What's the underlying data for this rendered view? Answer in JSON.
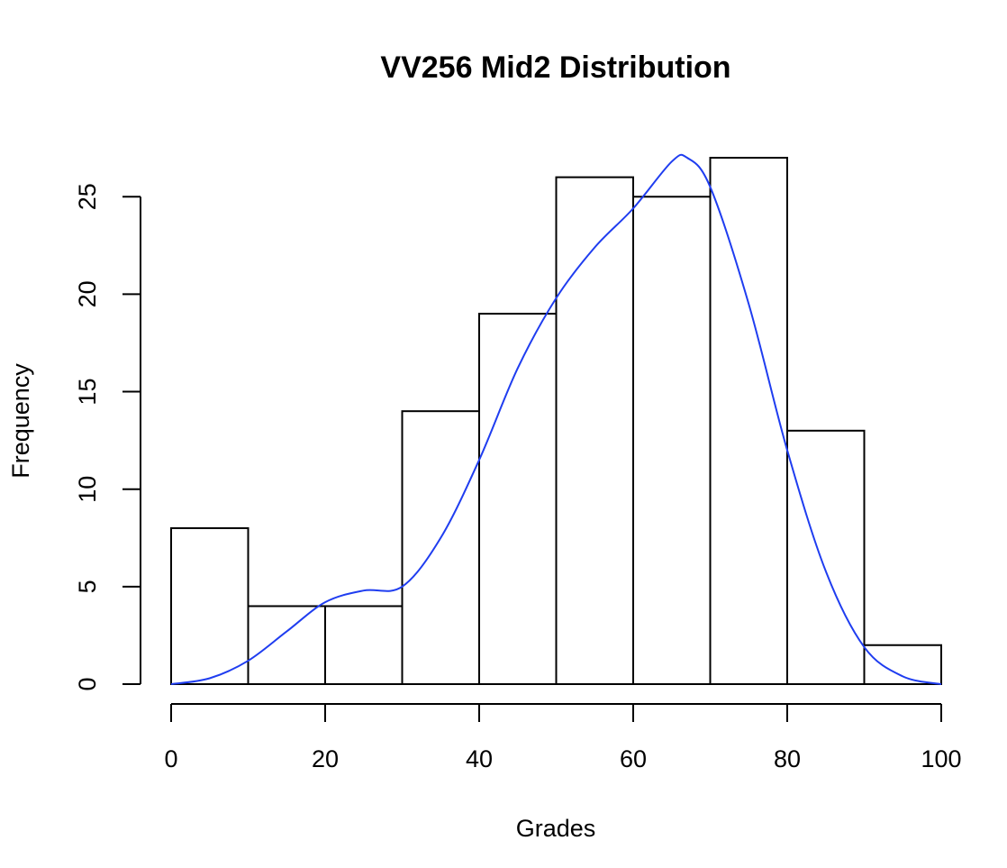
{
  "chart_data": {
    "type": "bar",
    "title": "VV256 Mid2 Distribution",
    "xlabel": "Grades",
    "ylabel": "Frequency",
    "bins": [
      {
        "start": 0,
        "end": 10,
        "value": 8
      },
      {
        "start": 10,
        "end": 20,
        "value": 4
      },
      {
        "start": 20,
        "end": 30,
        "value": 4
      },
      {
        "start": 30,
        "end": 40,
        "value": 14
      },
      {
        "start": 40,
        "end": 50,
        "value": 19
      },
      {
        "start": 50,
        "end": 60,
        "value": 26
      },
      {
        "start": 60,
        "end": 70,
        "value": 25
      },
      {
        "start": 70,
        "end": 80,
        "value": 27
      },
      {
        "start": 80,
        "end": 90,
        "value": 13
      },
      {
        "start": 90,
        "end": 100,
        "value": 2
      }
    ],
    "x_ticks": [
      0,
      20,
      40,
      60,
      80,
      100
    ],
    "x_tick_labels": [
      "0",
      "20",
      "40",
      "60",
      "80",
      "100"
    ],
    "y_ticks": [
      0,
      5,
      10,
      15,
      20,
      25
    ],
    "y_tick_labels": [
      "0",
      "5",
      "10",
      "15",
      "20",
      "25"
    ],
    "xlim": [
      0,
      100
    ],
    "ylim": [
      0,
      27
    ],
    "grid": false,
    "bar_fill": "#ffffff",
    "bar_stroke": "#000000",
    "density_curve": {
      "color": "#1f3df0",
      "points": [
        [
          0,
          0.0
        ],
        [
          5,
          0.3
        ],
        [
          10,
          1.2
        ],
        [
          15,
          2.7
        ],
        [
          20,
          4.2
        ],
        [
          25,
          4.8
        ],
        [
          30,
          5.0
        ],
        [
          35,
          7.5
        ],
        [
          40,
          11.5
        ],
        [
          45,
          16.2
        ],
        [
          50,
          19.8
        ],
        [
          55,
          22.4
        ],
        [
          60,
          24.4
        ],
        [
          65,
          26.8
        ],
        [
          67,
          27.0
        ],
        [
          70,
          25.5
        ],
        [
          75,
          19.5
        ],
        [
          80,
          12.0
        ],
        [
          85,
          5.8
        ],
        [
          90,
          1.9
        ],
        [
          95,
          0.4
        ],
        [
          100,
          0.0
        ]
      ]
    }
  }
}
